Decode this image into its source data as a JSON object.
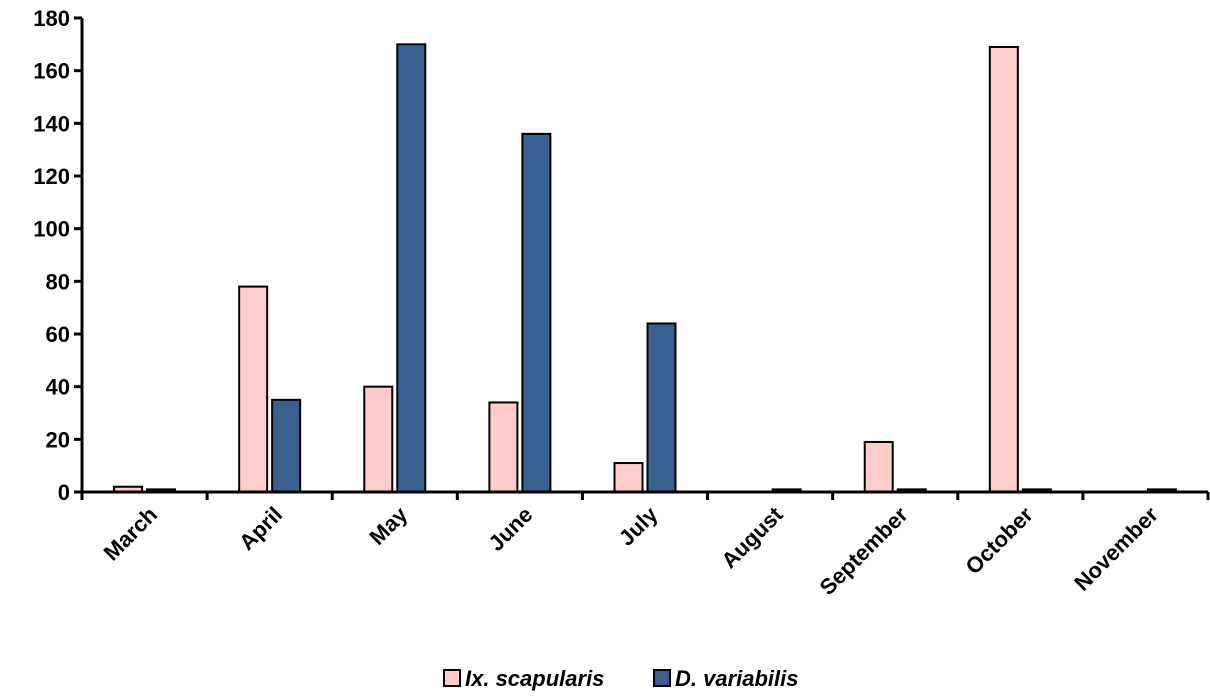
{
  "chart_data": {
    "type": "bar",
    "categories": [
      "March",
      "April",
      "May",
      "June",
      "July",
      "August",
      "September",
      "October",
      "November"
    ],
    "series": [
      {
        "name": "Ix. scapularis",
        "color": "#ffcccc",
        "values": [
          2,
          78,
          40,
          34,
          11,
          0,
          19,
          169,
          0
        ]
      },
      {
        "name": "D. variabilis",
        "color": "#3a6090",
        "values": [
          1,
          35,
          170,
          136,
          64,
          1,
          1,
          1,
          1
        ]
      }
    ],
    "yticks": [
      "0",
      "20",
      "40",
      "60",
      "80",
      "100",
      "120",
      "140",
      "160",
      "180"
    ],
    "ylim": [
      0,
      180
    ],
    "grid": false,
    "legend_position": "bottom"
  }
}
